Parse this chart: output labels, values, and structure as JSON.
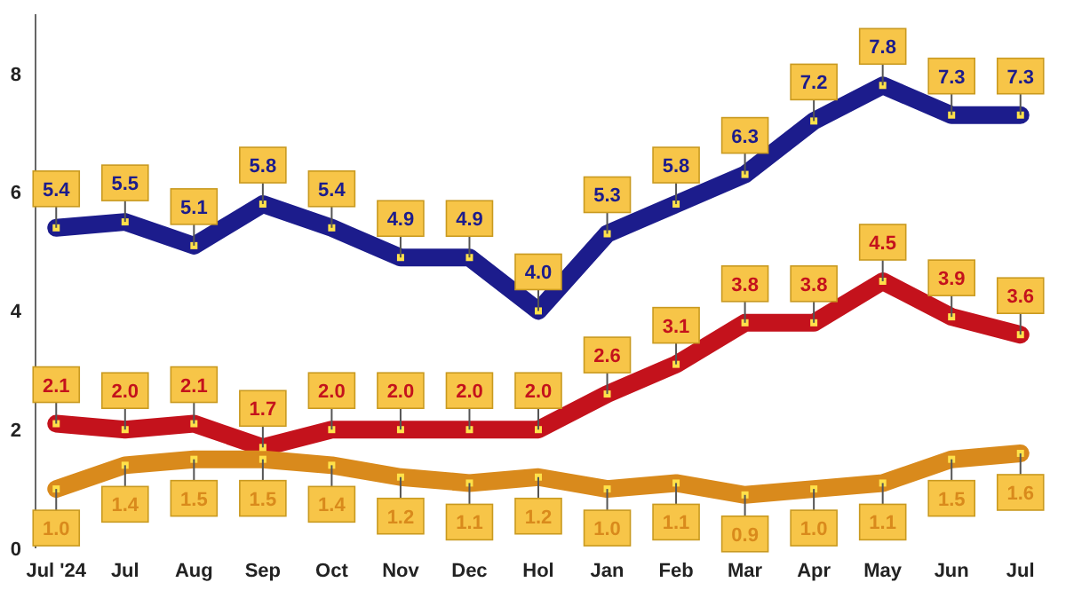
{
  "chart_data": {
    "type": "line",
    "categories": [
      "Jul '24",
      "Jul",
      "Aug",
      "Sep",
      "Oct",
      "Nov",
      "Dec",
      "Hol",
      "Jan",
      "Feb",
      "Mar",
      "Apr",
      "May",
      "Jun",
      "Jul"
    ],
    "series": [
      {
        "color": "#1c1c8c",
        "values": [
          5.4,
          5.5,
          5.1,
          5.8,
          5.4,
          4.9,
          4.9,
          4.0,
          5.3,
          5.8,
          6.3,
          7.2,
          7.8,
          7.3,
          7.3
        ],
        "value_labels": [
          "5.4",
          "5.5",
          "5.1",
          "5.8",
          "5.4",
          "4.9",
          "4.9",
          "4.0",
          "5.3",
          "5.8",
          "6.3",
          "7.2",
          "7.8",
          "7.3",
          "7.3"
        ]
      },
      {
        "color": "#c4121c",
        "values": [
          2.1,
          2.0,
          2.1,
          1.7,
          2.0,
          2.0,
          2.0,
          2.0,
          2.6,
          3.1,
          3.8,
          3.8,
          4.5,
          3.9,
          3.6
        ],
        "value_labels": [
          "2.1",
          "2.0",
          "2.1",
          "1.7",
          "2.0",
          "2.0",
          "2.0",
          "2.0",
          "2.6",
          "3.1",
          "3.8",
          "3.8",
          "4.5",
          "3.9",
          "3.6"
        ]
      },
      {
        "color": "#d98a1c",
        "values": [
          1.0,
          1.4,
          1.5,
          1.5,
          1.4,
          1.2,
          1.1,
          1.2,
          1.0,
          1.1,
          0.9,
          1.0,
          1.1,
          1.5,
          1.6
        ],
        "value_labels": [
          "1.0",
          "1.4",
          "1.5",
          "1.5",
          "1.4",
          "1.2",
          "1.1",
          "1.2",
          "1.0",
          "1.1",
          "0.9",
          "1.0",
          "1.1",
          "1.5",
          "1.6"
        ]
      }
    ],
    "ylim": [
      0,
      9
    ],
    "yticks": [
      0,
      2,
      4,
      6,
      8
    ],
    "marker": "square",
    "line_style": "solid"
  }
}
